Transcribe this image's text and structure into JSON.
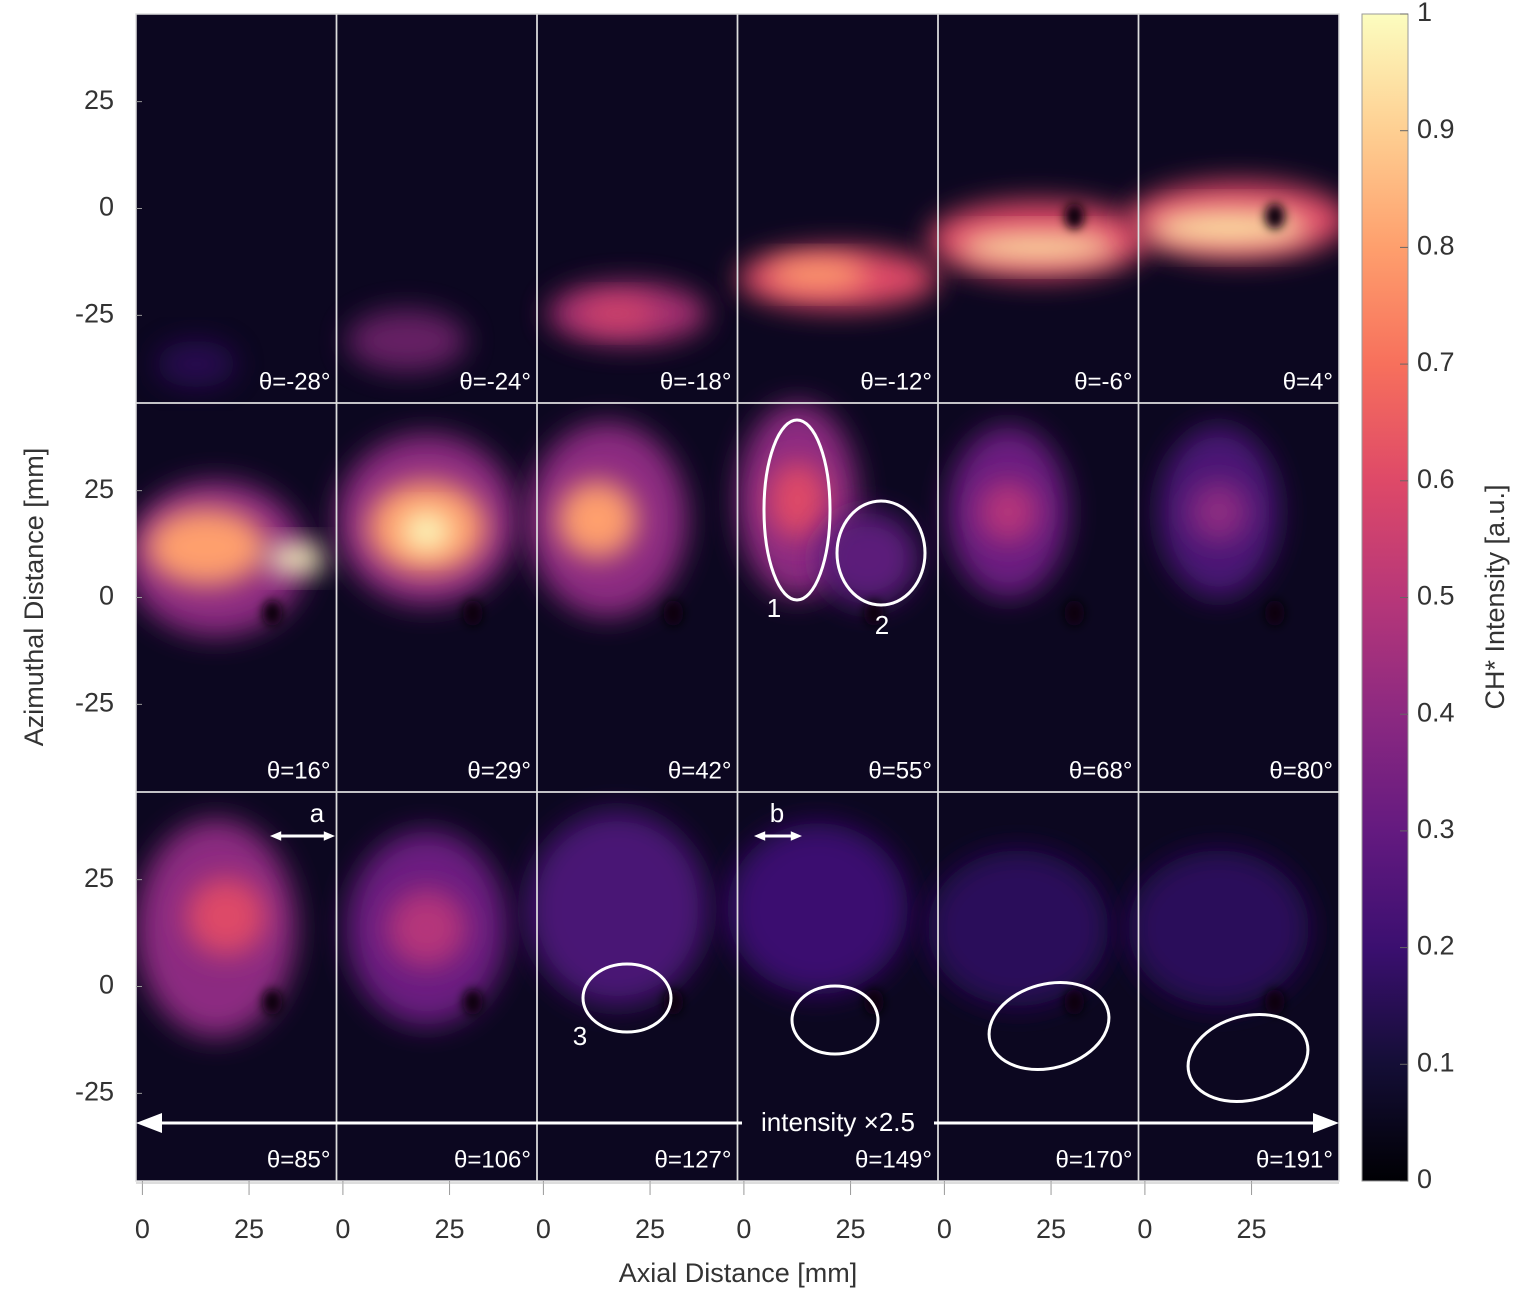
{
  "chart_data": {
    "type": "heatmap-grid",
    "x_label": "Axial Distance [mm]",
    "y_label": "Azimuthal Distance [mm]",
    "xlim": [
      -1.5,
      45.5
    ],
    "xticks": [
      0,
      25
    ],
    "ylim": [
      -45.5,
      45.5
    ],
    "yticks": [
      -25,
      0,
      25
    ],
    "panels": [
      "θ=-28°",
      "θ=-24°",
      "θ=-18°",
      "θ=-12°",
      "θ=-6°",
      "θ=4°",
      "θ=16°",
      "θ=29°",
      "θ=42°",
      "θ=55°",
      "θ=68°",
      "θ=80°",
      "θ=85°",
      "θ=106°",
      "θ=127°",
      "θ=149°",
      "θ=170°",
      "θ=191°"
    ],
    "colorbar": {
      "label": "CH* Intensity [a.u.]",
      "lim": [
        0,
        1
      ],
      "ticks": [
        0,
        0.1,
        0.2,
        0.3,
        0.4,
        0.5,
        0.6,
        0.7,
        0.8,
        0.9,
        1
      ]
    },
    "annotations": {
      "region_1": "1",
      "region_2": "2",
      "region_3": "3",
      "arrow_a": "a",
      "arrow_b": "b",
      "scale_note": "intensity ×2.5"
    }
  }
}
